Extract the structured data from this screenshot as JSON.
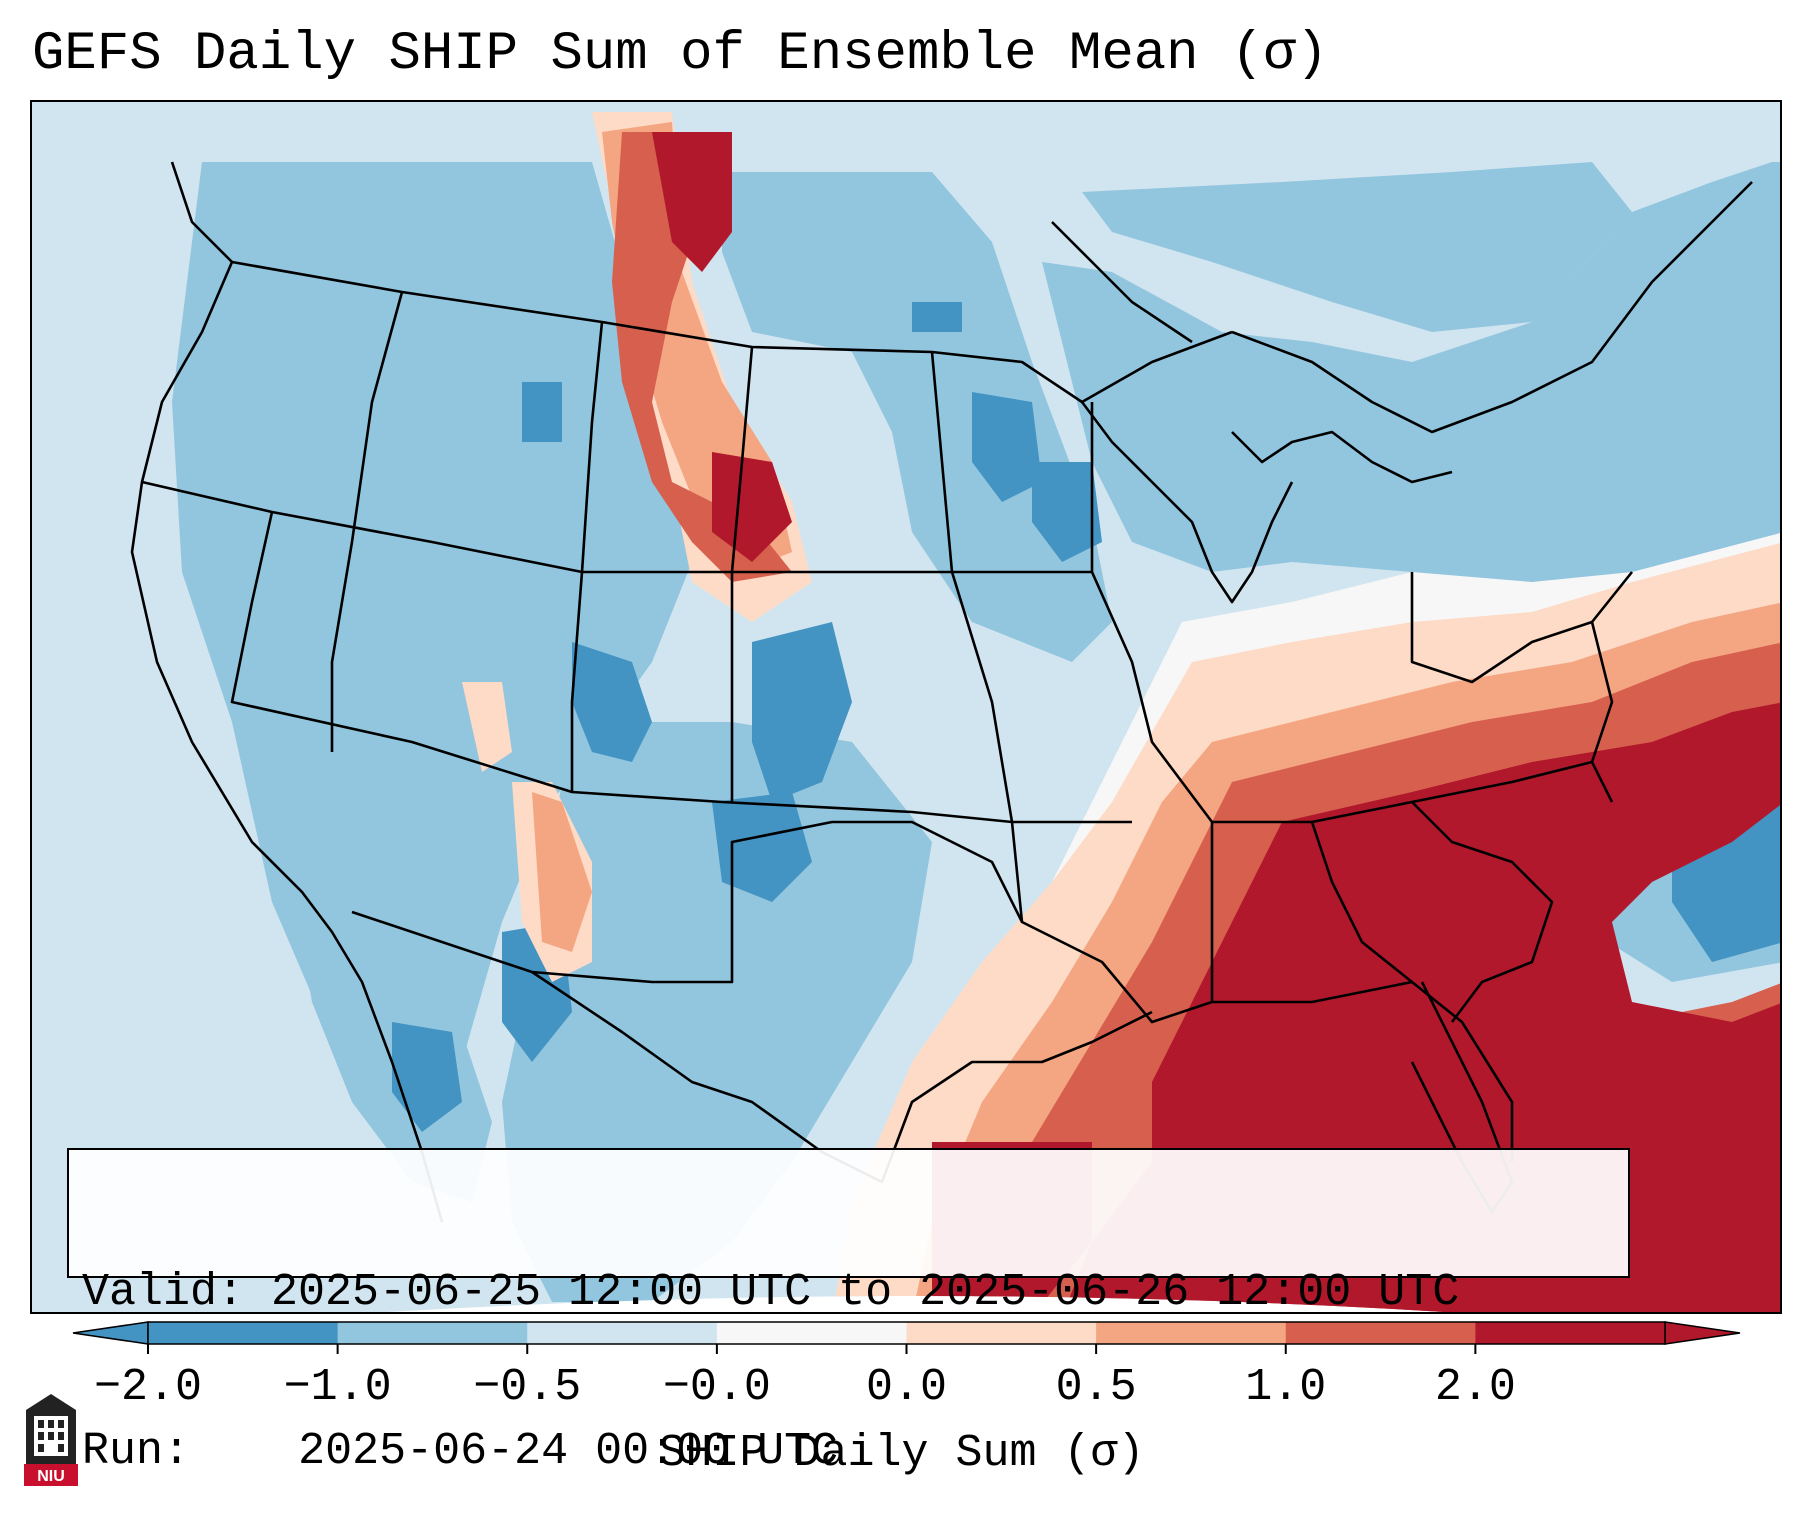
{
  "title": "GEFS Daily SHIP Sum of Ensemble Mean (σ)",
  "info": {
    "valid_label": "Valid:",
    "valid_value": "2025-06-25 12:00 UTC to 2025-06-26 12:00 UTC",
    "run_label": "Run:",
    "run_value": "2025-06-24 00:00 UTC"
  },
  "colorbar": {
    "label": "SHIP Daily Sum (σ)",
    "tick_labels": [
      "−2.0",
      "−1.0",
      "−0.5",
      "−0.0",
      "0.0",
      "0.5",
      "1.0",
      "2.0"
    ],
    "colors": [
      "#4393c3",
      "#92c5de",
      "#d1e5f0",
      "#f7f7f7",
      "#fddbc7",
      "#f4a582",
      "#d6604d",
      "#b2182b"
    ],
    "extend": "both"
  },
  "logo": {
    "text": "NIU",
    "icon": "university-tower-icon"
  },
  "map_icon": "us-map-state-boundaries",
  "shading": {
    "background": "#d1e5f0",
    "light_blue": "#92c5de",
    "blue": "#4393c3",
    "peach": "#fddbc7",
    "salmon": "#f4a582",
    "red_orange": "#d6604d",
    "dark_red": "#b2182b"
  }
}
